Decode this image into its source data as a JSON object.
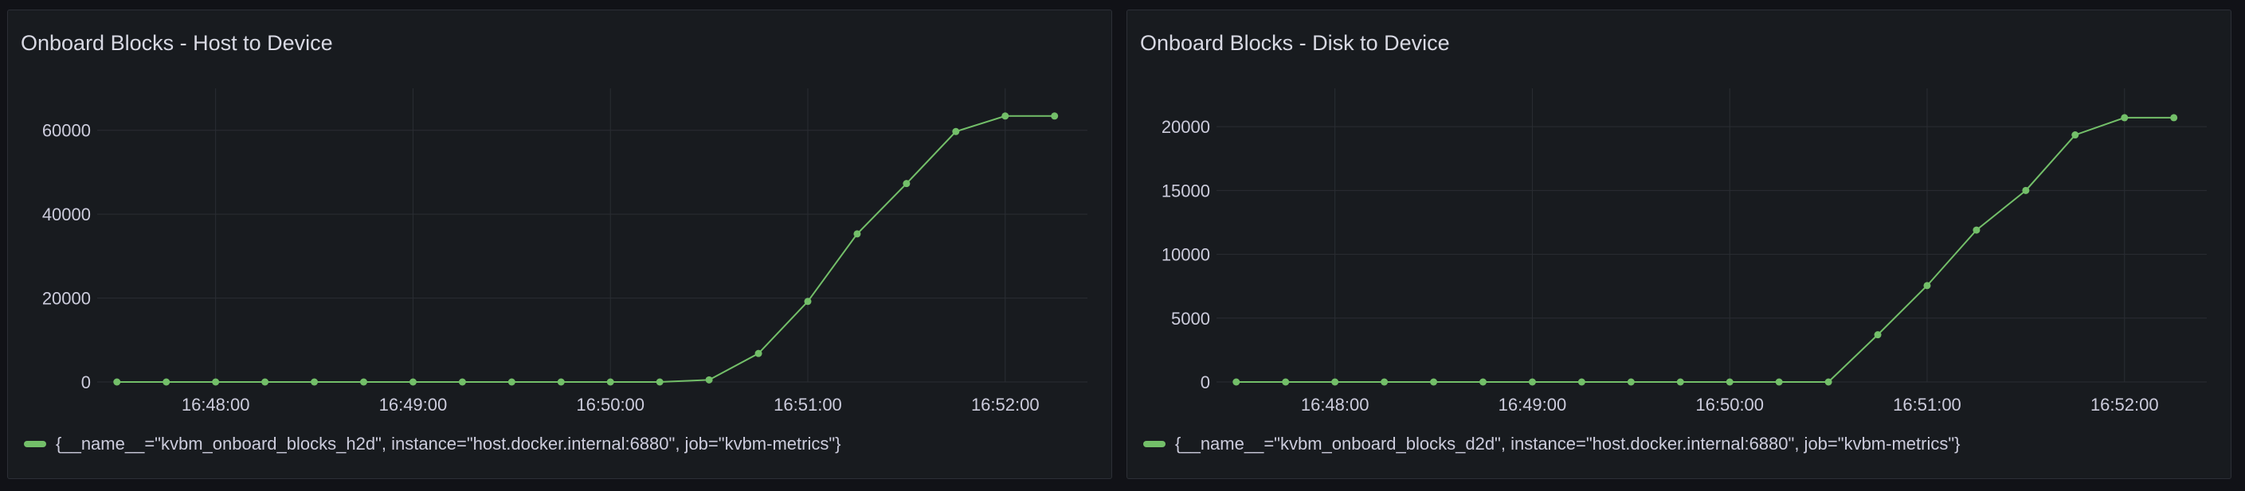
{
  "colors": {
    "series": "#73bf69",
    "background": "#111217",
    "panel": "#181b1f",
    "grid": "#2a2d33",
    "text": "#ccccdc"
  },
  "chart_data": [
    {
      "type": "line",
      "title": "Onboard Blocks - Host to Device",
      "x": [
        "16:47:30",
        "16:47:45",
        "16:48:00",
        "16:48:15",
        "16:48:30",
        "16:48:45",
        "16:49:00",
        "16:49:15",
        "16:49:30",
        "16:49:45",
        "16:50:00",
        "16:50:15",
        "16:50:30",
        "16:50:45",
        "16:51:00",
        "16:51:15",
        "16:51:30",
        "16:51:45",
        "16:52:00",
        "16:52:15"
      ],
      "series": [
        {
          "name": "{__name__=\"kvbm_onboard_blocks_h2d\", instance=\"host.docker.internal:6880\", job=\"kvbm-metrics\"}",
          "values": [
            0,
            0,
            0,
            0,
            0,
            0,
            0,
            0,
            0,
            0,
            0,
            0,
            500,
            6800,
            19200,
            35300,
            47300,
            59700,
            63400,
            63400
          ]
        }
      ],
      "xticks": [
        "16:48:00",
        "16:49:00",
        "16:50:00",
        "16:51:00",
        "16:52:00"
      ],
      "yticks": [
        0,
        20000,
        40000,
        60000
      ],
      "ylim": [
        0,
        70000
      ],
      "xlim": [
        "16:47:24",
        "16:52:25"
      ],
      "grid": true,
      "legend": "bottom-left"
    },
    {
      "type": "line",
      "title": "Onboard Blocks - Disk to Device",
      "x": [
        "16:47:30",
        "16:47:45",
        "16:48:00",
        "16:48:15",
        "16:48:30",
        "16:48:45",
        "16:49:00",
        "16:49:15",
        "16:49:30",
        "16:49:45",
        "16:50:00",
        "16:50:15",
        "16:50:30",
        "16:50:45",
        "16:51:00",
        "16:51:15",
        "16:51:30",
        "16:51:45",
        "16:52:00",
        "16:52:15"
      ],
      "series": [
        {
          "name": "{__name__=\"kvbm_onboard_blocks_d2d\", instance=\"host.docker.internal:6880\", job=\"kvbm-metrics\"}",
          "values": [
            0,
            0,
            0,
            0,
            0,
            0,
            0,
            0,
            0,
            0,
            0,
            0,
            0,
            3700,
            7550,
            11900,
            15000,
            19350,
            20700,
            20700
          ]
        }
      ],
      "xticks": [
        "16:48:00",
        "16:49:00",
        "16:50:00",
        "16:51:00",
        "16:52:00"
      ],
      "yticks": [
        0,
        5000,
        10000,
        15000,
        20000
      ],
      "ylim": [
        0,
        23000
      ],
      "xlim": [
        "16:47:24",
        "16:52:25"
      ],
      "grid": true,
      "legend": "bottom-left"
    }
  ]
}
